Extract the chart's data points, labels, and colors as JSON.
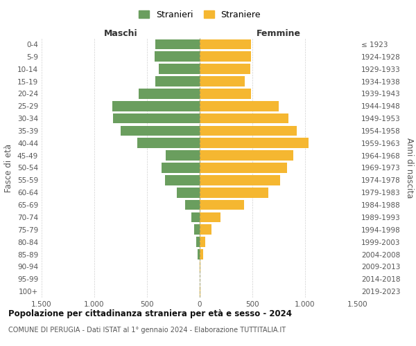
{
  "age_groups": [
    "0-4",
    "5-9",
    "10-14",
    "15-19",
    "20-24",
    "25-29",
    "30-34",
    "35-39",
    "40-44",
    "45-49",
    "50-54",
    "55-59",
    "60-64",
    "65-69",
    "70-74",
    "75-79",
    "80-84",
    "85-89",
    "90-94",
    "95-99",
    "100+"
  ],
  "birth_years": [
    "2019-2023",
    "2014-2018",
    "2009-2013",
    "2004-2008",
    "1999-2003",
    "1994-1998",
    "1989-1993",
    "1984-1988",
    "1979-1983",
    "1974-1978",
    "1969-1973",
    "1964-1968",
    "1959-1963",
    "1954-1958",
    "1949-1953",
    "1944-1948",
    "1939-1943",
    "1934-1938",
    "1929-1933",
    "1924-1928",
    "≤ 1923"
  ],
  "males": [
    420,
    430,
    390,
    420,
    580,
    830,
    820,
    750,
    590,
    320,
    360,
    330,
    220,
    140,
    80,
    55,
    30,
    20,
    3,
    1,
    2
  ],
  "females": [
    490,
    490,
    480,
    430,
    490,
    750,
    840,
    920,
    1030,
    890,
    830,
    760,
    650,
    420,
    195,
    110,
    50,
    30,
    8,
    3,
    5
  ],
  "male_color": "#6a9e5e",
  "female_color": "#f5b731",
  "male_label": "Stranieri",
  "female_label": "Straniere",
  "title": "Popolazione per cittadinanza straniera per età e sesso - 2024",
  "subtitle": "COMUNE DI PERUGIA - Dati ISTAT al 1° gennaio 2024 - Elaborazione TUTTITALIA.IT",
  "xlabel_left": "Maschi",
  "xlabel_right": "Femmine",
  "ylabel_left": "Fasce di età",
  "ylabel_right": "Anni di nascita",
  "xlim": 1500,
  "xticks": [
    -1500,
    -1000,
    -500,
    0,
    500,
    1000,
    1500
  ],
  "xticklabels": [
    "1.500",
    "1.000",
    "500",
    "0",
    "500",
    "1.000",
    "1.500"
  ],
  "background_color": "#ffffff",
  "grid_color": "#cccccc"
}
